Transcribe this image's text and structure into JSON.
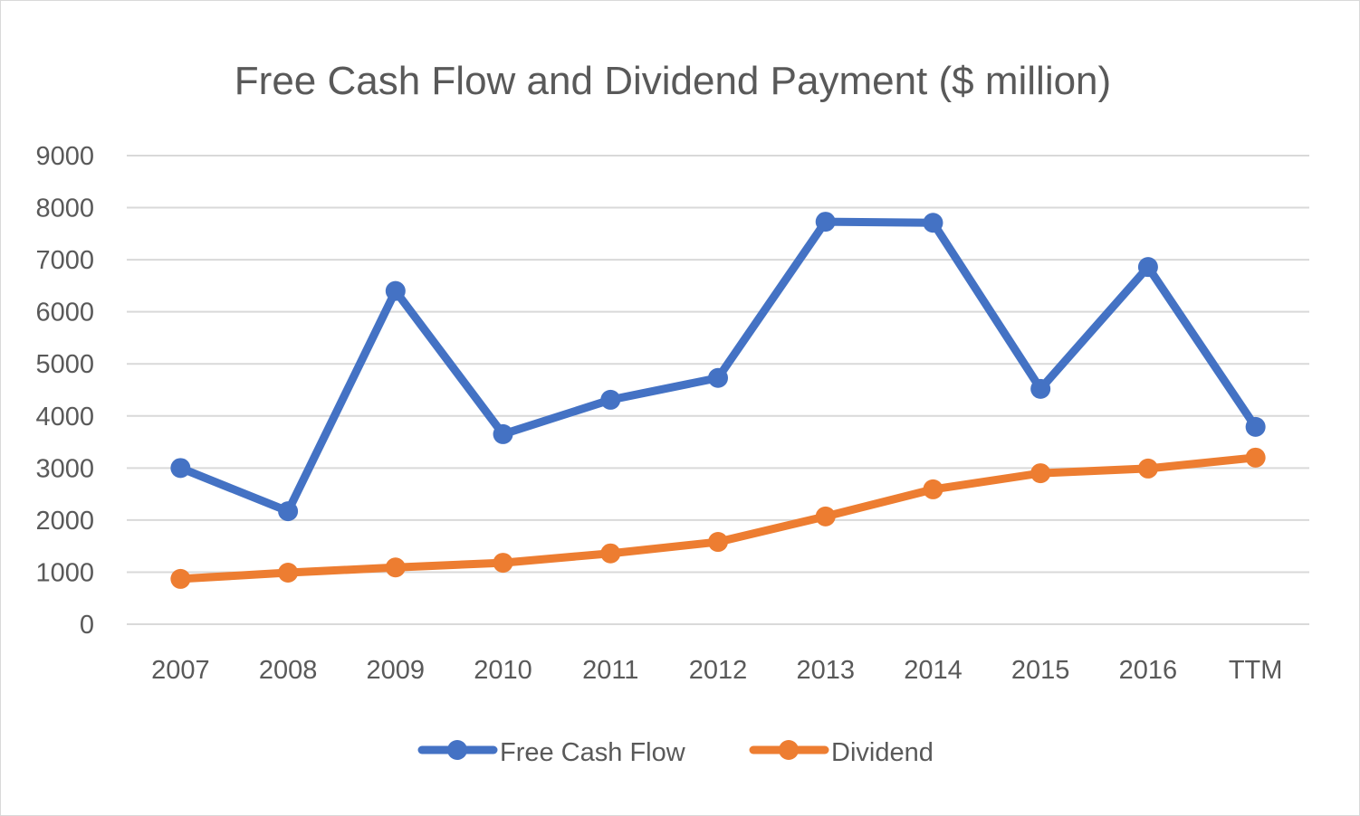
{
  "chart_data": {
    "type": "line",
    "title": "Free Cash Flow and Dividend Payment ($ million)",
    "xlabel": "",
    "ylabel": "",
    "categories": [
      "2007",
      "2008",
      "2009",
      "2010",
      "2011",
      "2012",
      "2013",
      "2014",
      "2015",
      "2016",
      "TTM"
    ],
    "series": [
      {
        "name": "Free Cash Flow",
        "color": "#4472C4",
        "values": [
          3000,
          2170,
          6400,
          3650,
          4310,
          4730,
          7730,
          7710,
          4520,
          6860,
          3790
        ]
      },
      {
        "name": "Dividend",
        "color": "#ED7D31",
        "values": [
          870,
          990,
          1090,
          1180,
          1360,
          1580,
          2070,
          2590,
          2900,
          2990,
          3200
        ]
      }
    ],
    "ylim": [
      0,
      9000
    ],
    "yticks": [
      0,
      1000,
      2000,
      3000,
      4000,
      5000,
      6000,
      7000,
      8000,
      9000
    ],
    "grid": true,
    "legend_position": "bottom",
    "gridline_color": "#D9D9D9",
    "text_color": "#595959"
  }
}
